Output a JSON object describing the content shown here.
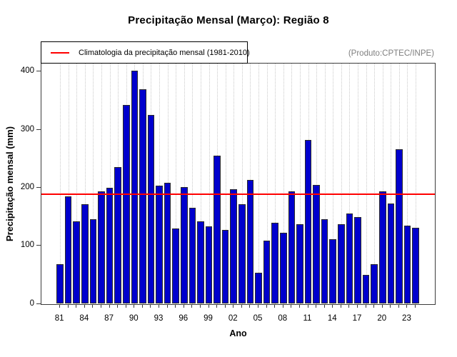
{
  "title": "Precipitação Mensal (Março): Região 8",
  "annotation": "(Produto:CPTEC/INPE)",
  "legend": {
    "label": "Climatologia da precipitação mensal (1981-2010)"
  },
  "colors": {
    "bar_fill": "#0000CD",
    "bar_border": "#2a2a2a",
    "climatology_line": "#FF0000",
    "annotation_text": "#7f7f7f",
    "gridline": "#c9c9c9",
    "axis": "#3c3c3c"
  },
  "chart_data": {
    "type": "bar",
    "title": "Precipitação Mensal (Março): Região 8",
    "xlabel": "Ano",
    "ylabel": "Precipitação mensal (mm)",
    "categories": [
      "81",
      "82",
      "83",
      "84",
      "85",
      "86",
      "87",
      "88",
      "89",
      "90",
      "91",
      "92",
      "93",
      "94",
      "95",
      "96",
      "97",
      "98",
      "99",
      "00",
      "01",
      "02",
      "03",
      "04",
      "05",
      "06",
      "07",
      "08",
      "09",
      "10",
      "11",
      "12",
      "13",
      "14",
      "15",
      "16",
      "17",
      "18",
      "19",
      "20",
      "21",
      "22",
      "23",
      "24"
    ],
    "values": [
      67,
      184,
      141,
      171,
      145,
      193,
      199,
      235,
      342,
      400,
      368,
      324,
      203,
      208,
      129,
      200,
      164,
      141,
      133,
      254,
      126,
      197,
      171,
      213,
      52,
      108,
      139,
      121,
      193,
      136,
      281,
      204,
      145,
      110,
      136,
      155,
      149,
      49,
      67,
      193,
      172,
      265,
      134,
      130
    ],
    "xtick_labels": [
      "81",
      "84",
      "87",
      "90",
      "93",
      "96",
      "99",
      "02",
      "05",
      "08",
      "11",
      "14",
      "17",
      "20",
      "23"
    ],
    "xtick_label_step": 3,
    "yticks": [
      0,
      100,
      200,
      300,
      400
    ],
    "ylim": [
      0,
      415
    ],
    "climatology_value": 188,
    "legend_entry": "Climatologia da precipitação mensal (1981-2010)",
    "legend_position": "top-left",
    "grid": "vertical dotted line per year",
    "units": "mm"
  }
}
